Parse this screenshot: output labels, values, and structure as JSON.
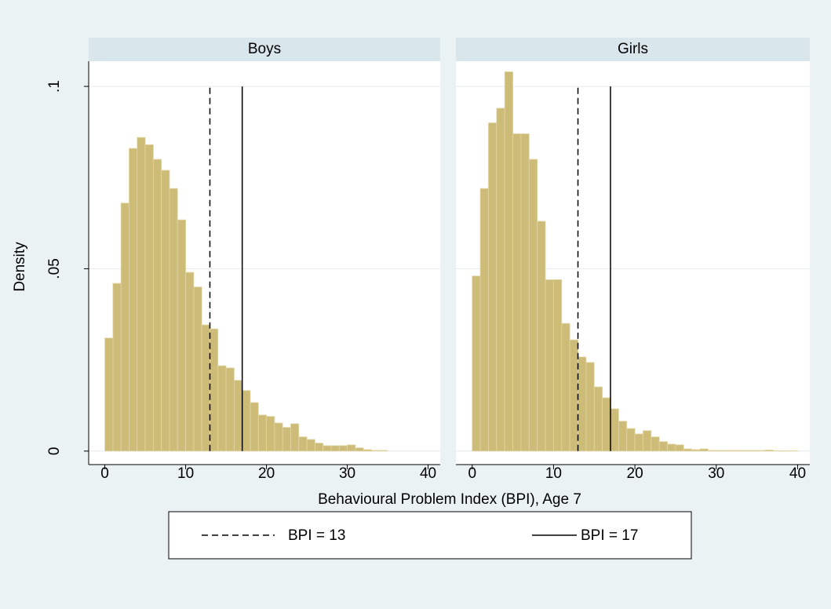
{
  "chart_data": {
    "type": "histogram",
    "ylabel": "Density",
    "xlabel": "Behavioural Problem Index (BPI), Age 7",
    "bins": [
      0,
      1,
      2,
      3,
      4,
      5,
      6,
      7,
      8,
      9,
      10,
      11,
      12,
      13,
      14,
      15,
      16,
      17,
      18,
      19,
      20,
      21,
      22,
      23,
      24,
      25,
      26,
      27,
      28,
      29,
      30,
      31,
      32,
      33,
      34,
      35,
      36,
      37,
      38,
      39,
      40
    ],
    "series": [
      {
        "name": "Boys",
        "color": "#cdbb78",
        "values": [
          0.031,
          0.046,
          0.068,
          0.083,
          0.086,
          0.084,
          0.08,
          0.077,
          0.072,
          0.0634,
          0.049,
          0.045,
          0.0346,
          0.0335,
          0.0234,
          0.0228,
          0.0194,
          0.0166,
          0.0133,
          0.0099,
          0.0095,
          0.0077,
          0.0065,
          0.0075,
          0.0039,
          0.0032,
          0.0022,
          0.0015,
          0.0015,
          0.0015,
          0.0017,
          0.0009,
          0.0004,
          0.0002,
          0.0002,
          0,
          0,
          0,
          0,
          0
        ]
      },
      {
        "name": "Girls",
        "color": "#cdbb78",
        "values": [
          0.048,
          0.072,
          0.09,
          0.094,
          0.104,
          0.087,
          0.087,
          0.08,
          0.063,
          0.047,
          0.047,
          0.035,
          0.0305,
          0.0258,
          0.0243,
          0.0176,
          0.0146,
          0.0116,
          0.0082,
          0.0062,
          0.0047,
          0.0056,
          0.0039,
          0.0026,
          0.0019,
          0.0017,
          0.0006,
          0.0004,
          0.0006,
          0.0002,
          0.0002,
          0.0002,
          0.0002,
          0.0002,
          0.0002,
          0.0002,
          0.0003,
          0.0001,
          0.0001,
          0.0001
        ]
      }
    ],
    "lines": [
      {
        "label": "BPI = 13",
        "value": 13,
        "style": "dashed",
        "color": "#000000"
      },
      {
        "label": "BPI = 17",
        "value": 17,
        "style": "solid",
        "color": "#000000"
      }
    ],
    "xlim": [
      -2,
      41.5
    ],
    "ylim": [
      -0.0037,
      0.1069
    ],
    "xticks": [
      0,
      10,
      20,
      30,
      40
    ],
    "yticks": [
      0,
      {
        "value": 0.05,
        "label": ".05"
      },
      {
        "value": 0.1,
        "label": ".1"
      }
    ],
    "grid": true
  }
}
